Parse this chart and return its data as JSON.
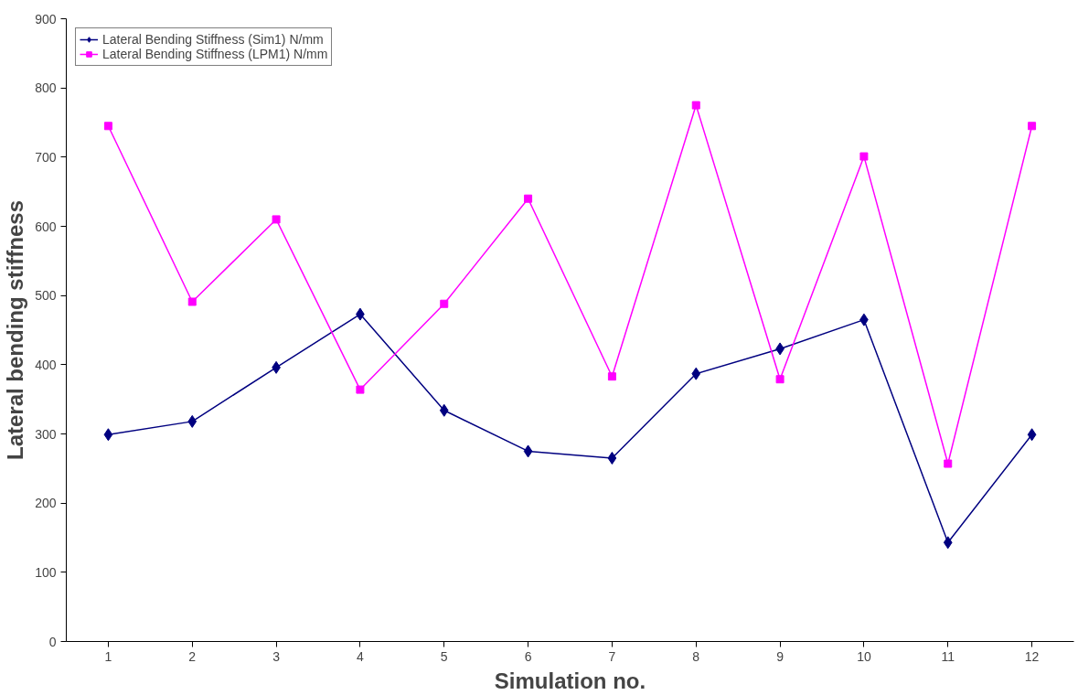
{
  "chart_data": {
    "type": "line",
    "xlabel": "Simulation no.",
    "ylabel": "Lateral bending stiffness",
    "categories": [
      "1",
      "2",
      "3",
      "4",
      "5",
      "6",
      "7",
      "8",
      "9",
      "10",
      "11",
      "12"
    ],
    "ylim": [
      0,
      900
    ],
    "yticks": [
      0,
      100,
      200,
      300,
      400,
      500,
      600,
      700,
      800,
      900
    ],
    "grid": false,
    "legend": "top left",
    "line_style": "solid",
    "series": [
      {
        "name": "Lateral Bending Stiffness (Sim1) N/mm",
        "color": "#000080",
        "marker": "diamond",
        "values": [
          299,
          318,
          396,
          473,
          334,
          275,
          265,
          387,
          423,
          465,
          143,
          299
        ]
      },
      {
        "name": "Lateral Bending Stiffness (LPM1) N/mm",
        "color": "#ff00ff",
        "marker": "square",
        "values": [
          745,
          491,
          610,
          364,
          488,
          640,
          383,
          775,
          379,
          701,
          257,
          745
        ]
      }
    ]
  }
}
